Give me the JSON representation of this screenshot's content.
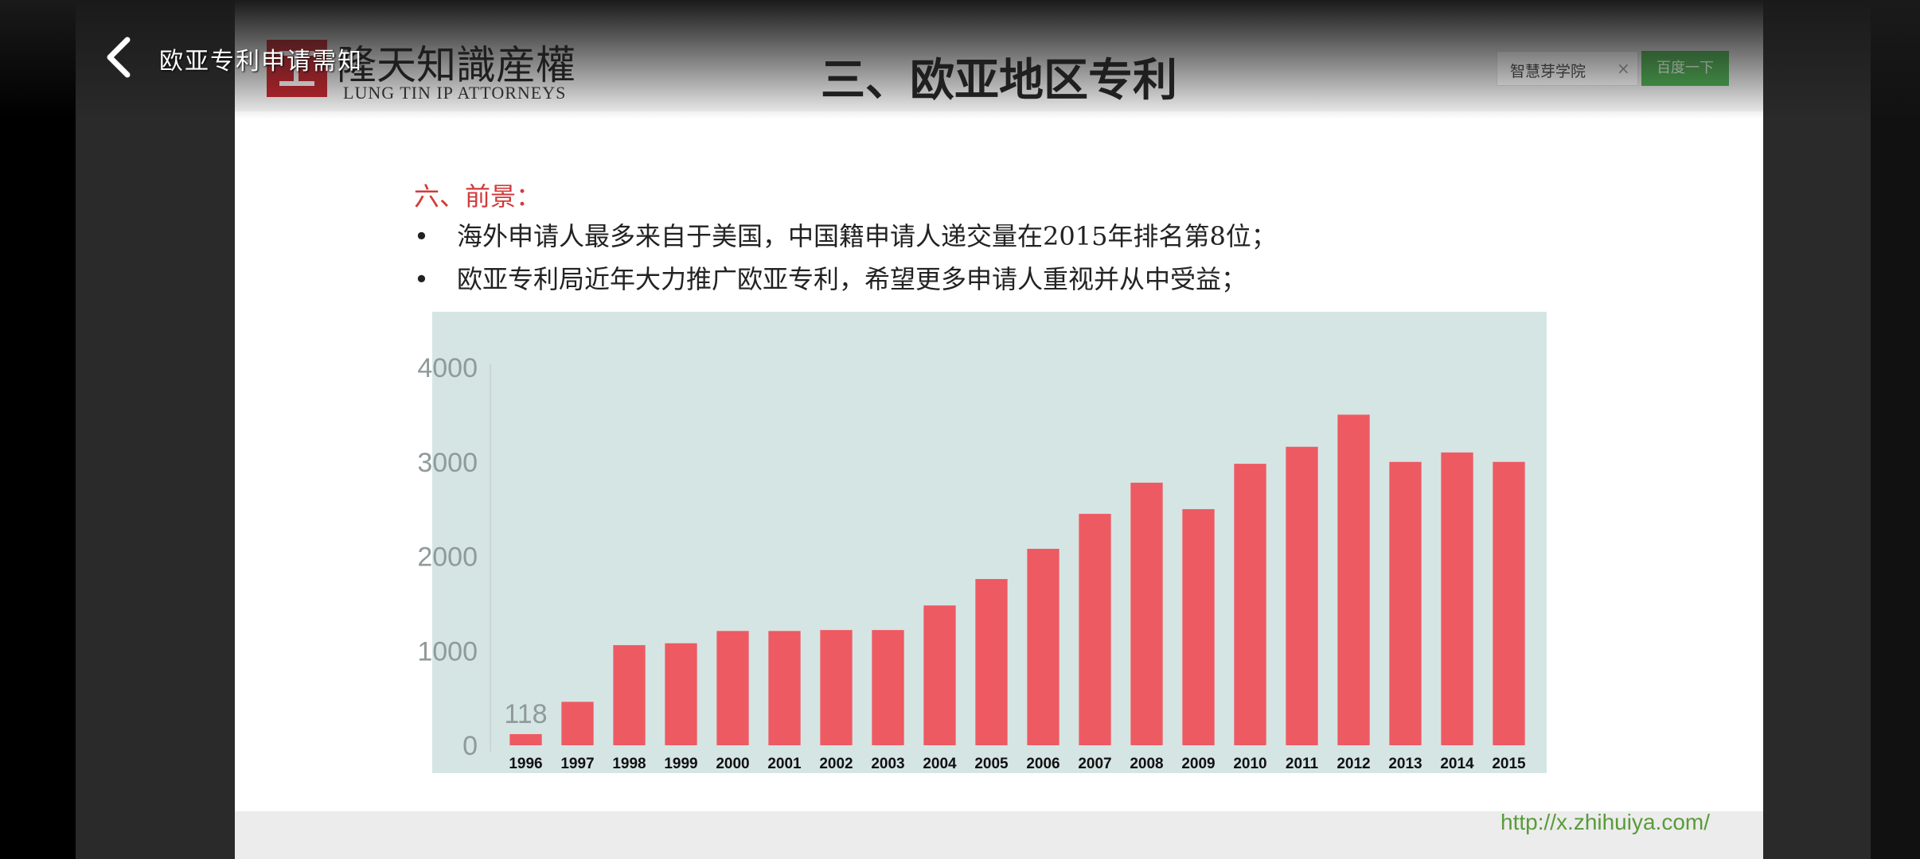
{
  "player": {
    "video_title": "欧亚专利申请需知",
    "back_icon": "chevron-left-icon"
  },
  "slide": {
    "logo": {
      "cn": "隆天知識産權",
      "en": "LUNG TIN IP ATTORNEYS"
    },
    "title": "三、欧亚地区专利",
    "search": {
      "value": "智慧芽学院",
      "button": "百度一下"
    },
    "section_heading": "六、前景：",
    "bullets": [
      "海外申请人最多来自于美国，中国籍申请人递交量在2015年排名第8位；",
      "欧亚专利局近年大力推广欧亚专利，希望更多申请人重视并从中受益；"
    ],
    "footer_url": "http://x.zhihuiya.com/"
  },
  "colors": {
    "bar": "#ee5a62",
    "chart_bg": "#d5e5e4",
    "heading": "#d43a3a",
    "url": "#5a9b3a"
  },
  "chart_data": {
    "type": "bar",
    "title": "",
    "xlabel": "",
    "ylabel": "",
    "categories": [
      "1996",
      "1997",
      "1998",
      "1999",
      "2000",
      "2001",
      "2002",
      "2003",
      "2004",
      "2005",
      "2006",
      "2007",
      "2008",
      "2009",
      "2010",
      "2011",
      "2012",
      "2013",
      "2014",
      "2015"
    ],
    "values": [
      118,
      460,
      1060,
      1080,
      1210,
      1210,
      1220,
      1220,
      1480,
      1760,
      2080,
      2450,
      2780,
      2500,
      2980,
      3160,
      3500,
      3000,
      3100,
      3000
    ],
    "yticks": [
      0,
      1000,
      2000,
      3000,
      4000
    ],
    "ylim": [
      0,
      4000
    ],
    "data_labels": [
      {
        "category": "1996",
        "text": "118"
      }
    ],
    "grid": false
  }
}
